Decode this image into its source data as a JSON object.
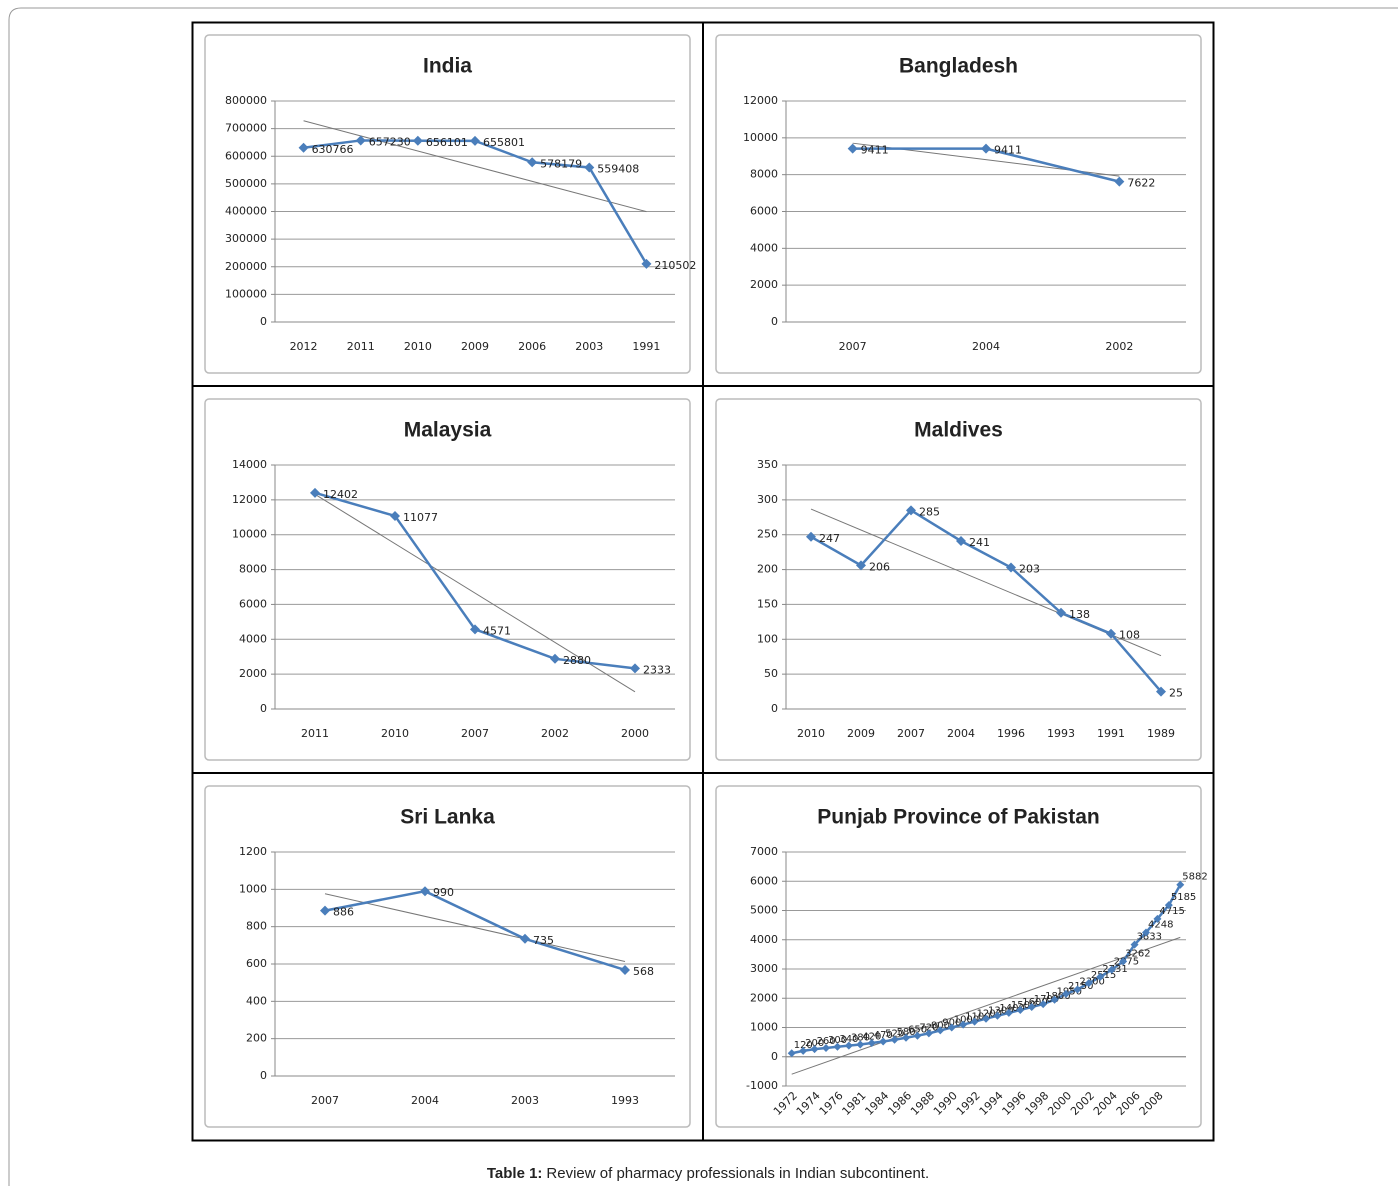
{
  "chart_data": [
    {
      "type": "line",
      "title": "India",
      "categories": [
        "2012",
        "2011",
        "2010",
        "2009",
        "2006",
        "2003",
        "1991"
      ],
      "values": [
        630766,
        657230,
        656101,
        655801,
        578179,
        559408,
        210502
      ],
      "color": "#4a7ebb",
      "ylim": [
        0,
        800000
      ],
      "yticks": [
        0,
        100000,
        200000,
        300000,
        400000,
        500000,
        600000,
        700000,
        800000
      ],
      "grid": true,
      "trendline": true
    },
    {
      "type": "line",
      "title": "Bangladesh",
      "categories": [
        "2007",
        "2004",
        "2002"
      ],
      "values": [
        9411,
        9411,
        7622
      ],
      "color": "#4a7ebb",
      "ylim": [
        0,
        12000
      ],
      "yticks": [
        0,
        2000,
        4000,
        6000,
        8000,
        10000,
        12000
      ],
      "grid": true,
      "trendline": true
    },
    {
      "type": "line",
      "title": "Malaysia",
      "categories": [
        "2011",
        "2010",
        "2007",
        "2002",
        "2000"
      ],
      "values": [
        12402,
        11077,
        4571,
        2880,
        2333
      ],
      "color": "#4a7ebb",
      "ylim": [
        0,
        14000
      ],
      "yticks": [
        0,
        2000,
        4000,
        6000,
        8000,
        10000,
        12000,
        14000
      ],
      "grid": true,
      "trendline": true
    },
    {
      "type": "line",
      "title": "Maldives",
      "categories": [
        "2010",
        "2009",
        "2007",
        "2004",
        "1996",
        "1993",
        "1991",
        "1989"
      ],
      "values": [
        247,
        206,
        285,
        241,
        203,
        138,
        108,
        25
      ],
      "color": "#4a7ebb",
      "ylim": [
        0,
        350
      ],
      "yticks": [
        0,
        50,
        100,
        150,
        200,
        250,
        300,
        350
      ],
      "grid": true,
      "trendline": true
    },
    {
      "type": "line",
      "title": "Sri Lanka",
      "categories": [
        "2007",
        "2004",
        "2003",
        "1993"
      ],
      "values": [
        886,
        990,
        735,
        568
      ],
      "color": "#4a7ebb",
      "ylim": [
        0,
        1200
      ],
      "yticks": [
        0,
        200,
        400,
        600,
        800,
        1000,
        1200
      ],
      "grid": true,
      "trendline": true
    },
    {
      "type": "line",
      "title": "Punjab Province of Pakistan",
      "categories": [
        "1972",
        null,
        "1974",
        null,
        "1976",
        null,
        "1981",
        null,
        "1984",
        null,
        "1986",
        null,
        "1988",
        null,
        "1990",
        null,
        "1992",
        null,
        "1994",
        null,
        "1996",
        null,
        "1998",
        null,
        "2000",
        null,
        "2002",
        null,
        "2004",
        null,
        "2006",
        null,
        "2008",
        null,
        null
      ],
      "values": [
        120,
        200,
        260,
        300,
        340,
        380,
        420,
        470,
        520,
        580,
        650,
        720,
        800,
        900,
        1000,
        1100,
        1200,
        1300,
        1400,
        1500,
        1600,
        1700,
        1800,
        1950,
        2150,
        2300,
        2515,
        2731,
        2975,
        3262,
        3833,
        4248,
        4715,
        5185,
        5882
      ],
      "color": "#4a7ebb",
      "ylim": [
        -1000,
        7000
      ],
      "yticks": [
        -1000,
        0,
        1000,
        2000,
        3000,
        4000,
        5000,
        6000,
        7000
      ],
      "grid": true,
      "trendline": true,
      "rotate_x_labels": true
    }
  ],
  "caption": {
    "label": "Table 1:",
    "text": "Review of pharmacy professionals in Indian subcontinent."
  }
}
